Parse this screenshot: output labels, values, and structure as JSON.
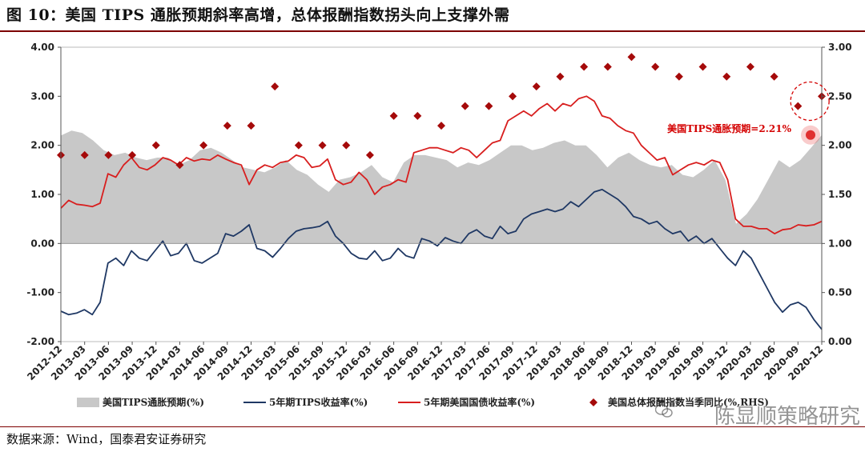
{
  "title": "图 10：美国 TIPS 通胀预期斜率高增，总体报酬指数拐头向上支撑外需",
  "source": "数据来源：Wind，国泰君安证券研究",
  "watermark": "陈显顺策略研究",
  "colors": {
    "area": "#c8c8c8",
    "tips": "#1f3864",
    "treasury": "#d81e1e",
    "diamond": "#a50a0a",
    "rule": "#7d0000"
  },
  "chart_data": {
    "type": "combo",
    "x_tick_labels": [
      "2012-12",
      "2013-03",
      "2013-06",
      "2013-09",
      "2013-12",
      "2014-03",
      "2014-06",
      "2014-09",
      "2014-12",
      "2015-03",
      "2015-06",
      "2015-09",
      "2015-12",
      "2016-03",
      "2016-06",
      "2016-09",
      "2016-12",
      "2017-03",
      "2017-06",
      "2017-09",
      "2017-12",
      "2018-03",
      "2018-06",
      "2018-09",
      "2018-12",
      "2019-03",
      "2019-06",
      "2019-09",
      "2019-12",
      "2020-03",
      "2020-06",
      "2020-09",
      "2020-12"
    ],
    "left_axis": {
      "min": -2.0,
      "max": 4.0,
      "ticks": [
        "-2.00",
        "-1.00",
        "0.00",
        "1.00",
        "2.00",
        "3.00",
        "4.00"
      ]
    },
    "right_axis": {
      "min": 0.0,
      "max": 3.0,
      "ticks": [
        "0.00",
        "0.50",
        "1.00",
        "1.50",
        "2.00",
        "2.50",
        "3.00"
      ]
    },
    "series": [
      {
        "name": "美国TIPS通胀预期(%)",
        "type": "area",
        "axis": "left",
        "values": [
          2.2,
          2.3,
          2.25,
          2.1,
          1.9,
          1.8,
          1.85,
          1.75,
          1.7,
          1.75,
          1.75,
          1.6,
          1.7,
          1.9,
          1.95,
          1.85,
          1.7,
          1.55,
          1.5,
          1.45,
          1.55,
          1.7,
          1.5,
          1.4,
          1.2,
          1.05,
          1.3,
          1.35,
          1.45,
          1.6,
          1.35,
          1.25,
          1.65,
          1.8,
          1.8,
          1.75,
          1.7,
          1.55,
          1.65,
          1.6,
          1.7,
          1.85,
          2.0,
          2.0,
          1.9,
          1.95,
          2.05,
          2.1,
          2.0,
          2.0,
          1.8,
          1.55,
          1.75,
          1.85,
          1.7,
          1.6,
          1.55,
          1.6,
          1.4,
          1.35,
          1.5,
          1.7,
          1.3,
          0.4,
          0.6,
          0.9,
          1.3,
          1.7,
          1.55,
          1.7,
          1.95,
          2.21
        ]
      },
      {
        "name": "5年期TIPS收益率(%)",
        "type": "line",
        "axis": "left",
        "values": [
          -1.38,
          -1.45,
          -1.42,
          -1.35,
          -1.45,
          -1.2,
          -0.4,
          -0.3,
          -0.45,
          -0.15,
          -0.3,
          -0.35,
          -0.15,
          0.05,
          -0.25,
          -0.2,
          0.0,
          -0.35,
          -0.4,
          -0.3,
          -0.2,
          0.2,
          0.15,
          0.25,
          0.38,
          -0.1,
          -0.15,
          -0.28,
          -0.1,
          0.1,
          0.25,
          0.3,
          0.32,
          0.35,
          0.45,
          0.15,
          0.0,
          -0.2,
          -0.3,
          -0.32,
          -0.15,
          -0.35,
          -0.3,
          -0.1,
          -0.25,
          -0.3,
          0.1,
          0.05,
          -0.05,
          0.12,
          0.05,
          0.0,
          0.2,
          0.28,
          0.15,
          0.1,
          0.35,
          0.2,
          0.25,
          0.5,
          0.6,
          0.65,
          0.7,
          0.65,
          0.7,
          0.85,
          0.75,
          0.9,
          1.05,
          1.1,
          1.0,
          0.9,
          0.75,
          0.55,
          0.5,
          0.4,
          0.45,
          0.3,
          0.2,
          0.25,
          0.05,
          0.15,
          0.0,
          0.1,
          -0.1,
          -0.3,
          -0.45,
          -0.15,
          -0.3,
          -0.6,
          -0.9,
          -1.2,
          -1.4,
          -1.25,
          -1.2,
          -1.3,
          -1.55,
          -1.75
        ]
      },
      {
        "name": "5年期美国国债收益率(%)",
        "type": "line",
        "axis": "left",
        "values": [
          0.72,
          0.88,
          0.8,
          0.78,
          0.75,
          0.82,
          1.42,
          1.35,
          1.6,
          1.75,
          1.55,
          1.5,
          1.6,
          1.75,
          1.7,
          1.6,
          1.75,
          1.68,
          1.72,
          1.7,
          1.8,
          1.72,
          1.65,
          1.6,
          1.2,
          1.5,
          1.6,
          1.55,
          1.65,
          1.68,
          1.8,
          1.75,
          1.55,
          1.58,
          1.72,
          1.3,
          1.2,
          1.25,
          1.45,
          1.3,
          1.0,
          1.15,
          1.2,
          1.3,
          1.25,
          1.85,
          1.9,
          1.95,
          1.95,
          1.9,
          1.85,
          1.95,
          1.9,
          1.75,
          1.9,
          2.05,
          2.1,
          2.5,
          2.6,
          2.7,
          2.6,
          2.75,
          2.85,
          2.7,
          2.85,
          2.8,
          2.95,
          3.0,
          2.9,
          2.6,
          2.55,
          2.4,
          2.3,
          2.25,
          2.0,
          1.85,
          1.7,
          1.75,
          1.4,
          1.5,
          1.6,
          1.65,
          1.6,
          1.7,
          1.65,
          1.3,
          0.5,
          0.35,
          0.35,
          0.3,
          0.3,
          0.2,
          0.28,
          0.3,
          0.38,
          0.36,
          0.38,
          0.45
        ]
      },
      {
        "name": "美国总体报酬指数当季同比(%,RHS)",
        "type": "scatter",
        "axis": "right",
        "values": [
          1.9,
          1.9,
          1.9,
          1.9,
          2.0,
          1.8,
          2.0,
          2.2,
          2.2,
          2.6,
          2.0,
          2.0,
          2.0,
          1.9,
          2.3,
          2.3,
          2.2,
          2.4,
          2.4,
          2.5,
          2.6,
          2.7,
          2.8,
          2.8,
          2.9,
          2.8,
          2.7,
          2.8,
          2.7,
          2.8,
          2.7,
          2.4,
          2.5
        ]
      }
    ],
    "annotation": {
      "label": "美国TIPS通胀预期=2.21%",
      "value": 2.21
    }
  }
}
